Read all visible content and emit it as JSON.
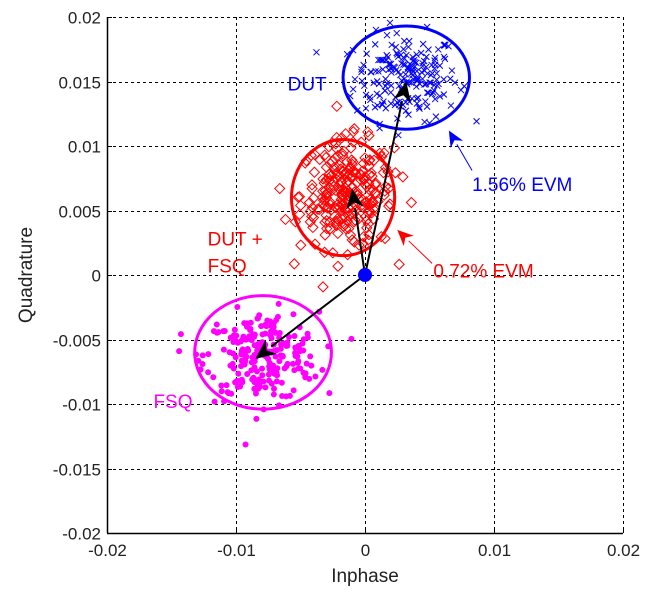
{
  "chart_data": {
    "type": "scatter",
    "title": "",
    "xlabel": "Inphase",
    "ylabel": "Quadrature",
    "xlim": [
      -0.02,
      0.02
    ],
    "ylim": [
      -0.02,
      0.02
    ],
    "grid": true,
    "xticks": [
      "-0.02",
      "-0.01",
      "0",
      "0.01",
      "0.02"
    ],
    "xtick_values": [
      -0.02,
      -0.01,
      0,
      0.01,
      0.02
    ],
    "yticks": [
      "0.02",
      "0.015",
      "0.01",
      "0.005",
      "0",
      "-0.005",
      "-0.01",
      "-0.015",
      "-0.02"
    ],
    "ytick_values": [
      0.02,
      0.015,
      0.01,
      0.005,
      0,
      -0.005,
      -0.01,
      -0.015,
      -0.02
    ],
    "origin_marker": {
      "x": 0,
      "y": 0,
      "color": "#0000ff"
    },
    "series": [
      {
        "name": "DUT",
        "marker": "x",
        "color": "#0000ff",
        "count": 200,
        "center": [
          0.0032,
          0.0153
        ],
        "spread": [
          0.002,
          0.0017
        ],
        "ellipse": {
          "cx": 0.0032,
          "cy": 0.0153,
          "rx": 0.0049,
          "ry": 0.004
        },
        "arrow_to": [
          0.0032,
          0.015
        ]
      },
      {
        "name": "DUT + FSQ",
        "marker": "diamond",
        "color": "#ff0000",
        "count": 260,
        "center": [
          -0.0014,
          0.0062
        ],
        "spread": [
          0.0018,
          0.0021
        ],
        "ellipse": {
          "cx": -0.0017,
          "cy": 0.006,
          "rx": 0.004,
          "ry": 0.0045
        },
        "arrow_to": [
          -0.001,
          0.0067
        ]
      },
      {
        "name": "FSQ",
        "marker": "dot",
        "color": "#ff00ff",
        "count": 240,
        "center": [
          -0.008,
          -0.0063
        ],
        "spread": [
          0.0022,
          0.0017
        ],
        "ellipse": {
          "cx": -0.0079,
          "cy": -0.006,
          "rx": 0.0053,
          "ry": 0.0044
        },
        "arrow_to": [
          -0.0085,
          -0.0065
        ]
      }
    ],
    "annotations": [
      {
        "text": "DUT",
        "color": "#0000ff",
        "at": [
          -0.006,
          0.0143
        ]
      },
      {
        "text": "DUT +",
        "color": "#ff0000",
        "at": [
          -0.0122,
          0.0023
        ]
      },
      {
        "text": "FSQ",
        "color": "#ff0000",
        "at": [
          -0.0122,
          0.0002
        ]
      },
      {
        "text": "FSQ",
        "color": "#ff00ff",
        "at": [
          -0.0164,
          -0.0103
        ]
      },
      {
        "text": "1.56% EVM",
        "color": "#0000ff",
        "at": [
          0.0083,
          0.0065
        ],
        "arrow_from": [
          0.0083,
          0.0081
        ],
        "arrow_to": [
          0.0065,
          0.0112
        ]
      },
      {
        "text": "0.72% EVM",
        "color": "#ff0000",
        "at": [
          0.0053,
          -0.0002
        ],
        "arrow_from": [
          0.0052,
          0.0009
        ],
        "arrow_to": [
          0.0025,
          0.0035
        ]
      }
    ]
  }
}
